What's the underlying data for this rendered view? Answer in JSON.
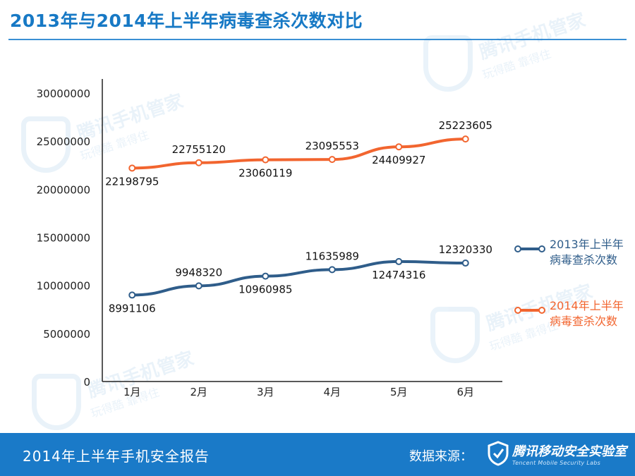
{
  "header": {
    "title": "2013年与2014年上半年病毒查杀次数对比"
  },
  "watermark": {
    "brand": "腾讯手机管家",
    "slogan": "玩得酷  靠得住"
  },
  "chart_data": {
    "type": "line",
    "categories": [
      "1月",
      "2月",
      "3月",
      "4月",
      "5月",
      "6月"
    ],
    "series": [
      {
        "name": "2013年上半年病毒查杀次数",
        "color": "#2f5d8a",
        "values": [
          8991106,
          9948320,
          10960985,
          11635989,
          12474316,
          12320330
        ]
      },
      {
        "name": "2014年上半年病毒查杀次数",
        "color": "#f2652f",
        "values": [
          22198795,
          22755120,
          23060119,
          23095553,
          24409927,
          25223605
        ]
      }
    ],
    "y_ticks": [
      "0",
      "5000000",
      "10000000",
      "15000000",
      "20000000",
      "25000000",
      "30000000"
    ],
    "ylim": [
      0,
      30000000
    ],
    "legend_position": "right",
    "grid": false,
    "title": "2013年与2014年上半年病毒查杀次数对比",
    "xlabel": "",
    "ylabel": ""
  },
  "footer": {
    "report_title": "2014年上半年手机安全报告",
    "source_label": "数据来源：",
    "lab_name": "腾讯移动安全实验室",
    "lab_name_en": "Tencent Mobile Security Labs"
  }
}
